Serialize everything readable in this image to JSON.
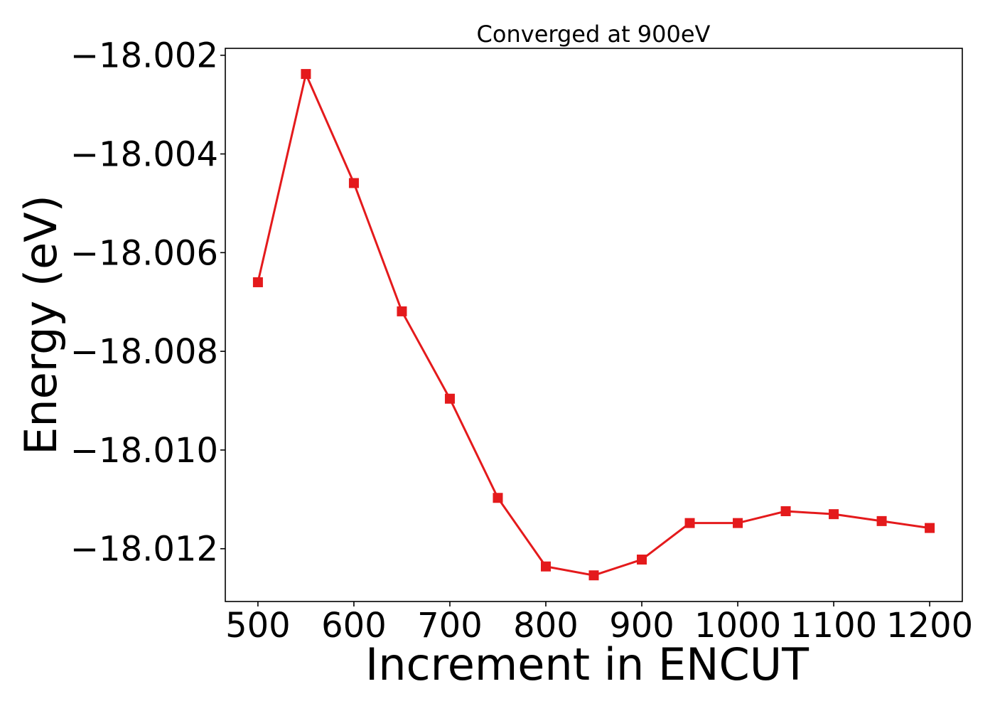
{
  "chart_data": {
    "type": "line",
    "title": "Converged at 900eV",
    "xlabel": "Increment in ENCUT",
    "ylabel": "Energy (eV)",
    "x": [
      500,
      550,
      600,
      650,
      700,
      750,
      800,
      850,
      900,
      950,
      1000,
      1050,
      1100,
      1150,
      1200
    ],
    "series": [
      {
        "values": [
          -18.0066,
          -18.00238,
          -18.00459,
          -18.00719,
          -18.00896,
          -18.01097,
          -18.01236,
          -18.01254,
          -18.01222,
          -18.01148,
          -18.01148,
          -18.01124,
          -18.0113,
          -18.01144,
          -18.01158
        ],
        "color": "#e41a1c",
        "marker": "square"
      }
    ],
    "xlim": [
      466,
      1234
    ],
    "ylim": [
      -18.01307,
      -18.00186
    ],
    "xticks": [
      500,
      600,
      700,
      800,
      900,
      1000,
      1100,
      1200
    ],
    "xtick_labels": [
      "500",
      "600",
      "700",
      "800",
      "900",
      "1000",
      "1100",
      "1200"
    ],
    "yticks": [
      -18.012,
      -18.01,
      -18.008,
      -18.006,
      -18.004,
      -18.002
    ],
    "ytick_labels": [
      "−18.012",
      "−18.010",
      "−18.008",
      "−18.006",
      "−18.004",
      "−18.002"
    ],
    "grid": false,
    "legend": null
  }
}
